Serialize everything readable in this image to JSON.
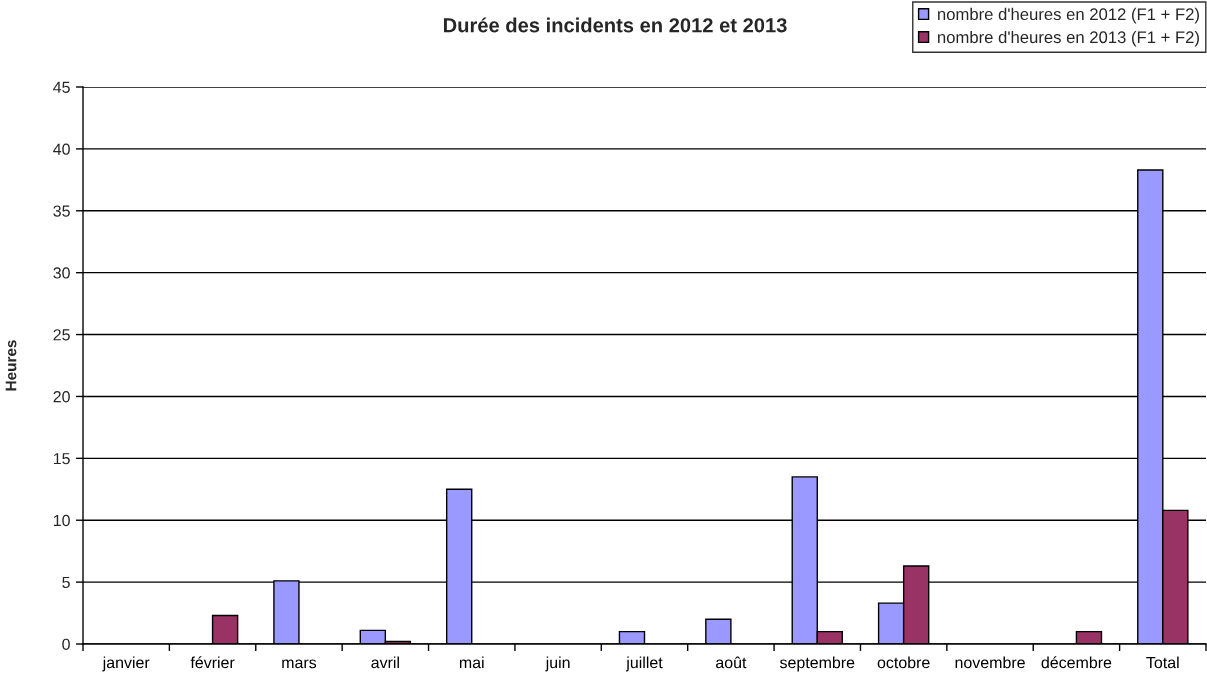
{
  "chart_data": {
    "type": "bar",
    "title": "Durée des incidents en 2012 et 2013",
    "ylabel": "Heures",
    "categories": [
      "janvier",
      "février",
      "mars",
      "avril",
      "mai",
      "juin",
      "juillet",
      "août",
      "septembre",
      "octobre",
      "novembre",
      "décembre",
      "Total"
    ],
    "series": [
      {
        "name": "nombre d'heures en 2012 (F1 + F2)",
        "color": "#9999ff",
        "values": [
          null,
          null,
          5.1,
          1.1,
          12.5,
          null,
          1.0,
          2.0,
          13.5,
          3.3,
          null,
          null,
          38.3
        ]
      },
      {
        "name": "nombre d'heures en 2013 (F1 + F2)",
        "color": "#993366",
        "values": [
          null,
          2.3,
          null,
          0.2,
          null,
          null,
          null,
          null,
          1.0,
          6.3,
          null,
          1.0,
          10.8
        ]
      }
    ],
    "ylim": [
      0,
      45
    ],
    "yticks": [
      0,
      5,
      10,
      15,
      20,
      25,
      30,
      35,
      40,
      45
    ],
    "grid": "y",
    "legend": "top right"
  }
}
